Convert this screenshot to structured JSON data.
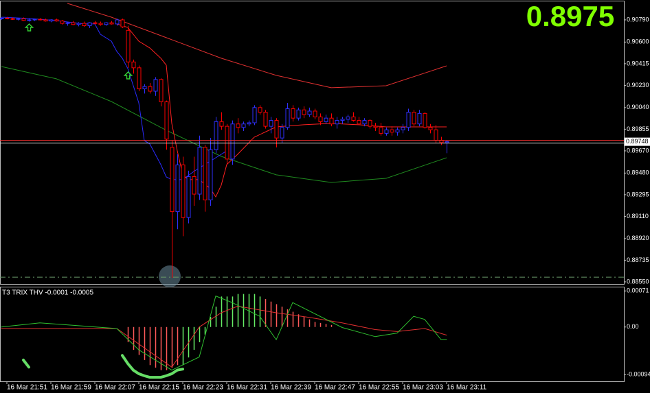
{
  "chart_data": [
    {
      "type": "candlestick",
      "title": "0.8975",
      "title_color": "#7fff00",
      "up_color": "#3030ff",
      "down_color": "#ff0000",
      "x": [
        0,
        1,
        2,
        3,
        4,
        5,
        6,
        7,
        8,
        9,
        10,
        11,
        12,
        13,
        14,
        15,
        16,
        17,
        18,
        19,
        20,
        21,
        22,
        23,
        24,
        25,
        26,
        27,
        28,
        29,
        30,
        31,
        32,
        33,
        34,
        35,
        36,
        37,
        38,
        39,
        40,
        41,
        42,
        43,
        44,
        45,
        46,
        47,
        48,
        49,
        50,
        51,
        52,
        53,
        54,
        55,
        56,
        57,
        58,
        59,
        60,
        61,
        62,
        63,
        64,
        65,
        66,
        67,
        68,
        69,
        70,
        71,
        72,
        73,
        74,
        75,
        76,
        77,
        78,
        79,
        80,
        81
      ],
      "open": [
        0.908,
        0.90805,
        0.908,
        0.90795,
        0.908,
        0.90785,
        0.9079,
        0.90795,
        0.9079,
        0.9078,
        0.9079,
        0.9078,
        0.9076,
        0.90765,
        0.9075,
        0.9076,
        0.9074,
        0.90765,
        0.9076,
        0.9075,
        0.90765,
        0.90755,
        0.9079,
        0.907,
        0.9043,
        0.9038,
        0.902,
        0.9022,
        0.9018,
        0.9028,
        0.9009,
        0.897,
        0.8915,
        0.8955,
        0.891,
        0.8945,
        0.893,
        0.897,
        0.8925,
        0.8968,
        0.8992,
        0.8988,
        0.896,
        0.899,
        0.8987,
        0.899,
        0.8991,
        0.9004,
        0.9,
        0.8988,
        0.8993,
        0.8978,
        0.8987,
        0.9003,
        0.8995,
        0.9002,
        0.8998,
        0.9001,
        0.8996,
        0.8992,
        0.8995,
        0.899,
        0.8993,
        0.8994,
        0.8996,
        0.8993,
        0.899,
        0.8993,
        0.8988,
        0.8987,
        0.8982,
        0.8985,
        0.8983,
        0.8985,
        0.8987,
        0.9,
        0.899,
        0.8999,
        0.8987,
        0.8985,
        0.8976,
        0.8974
      ],
      "high": [
        0.9081,
        0.90815,
        0.9081,
        0.90805,
        0.9081,
        0.908,
        0.908,
        0.90805,
        0.908,
        0.90795,
        0.908,
        0.9079,
        0.90775,
        0.9078,
        0.9077,
        0.90775,
        0.9077,
        0.9078,
        0.90775,
        0.9077,
        0.9078,
        0.908,
        0.908,
        0.9074,
        0.9045,
        0.904,
        0.9024,
        0.9025,
        0.903,
        0.9029,
        0.901,
        0.8976,
        0.8964,
        0.8962,
        0.895,
        0.8962,
        0.898,
        0.8972,
        0.8978,
        0.8996,
        0.9,
        0.899,
        0.8993,
        0.8995,
        0.8992,
        0.8993,
        0.9006,
        0.9006,
        0.9002,
        0.8996,
        0.8995,
        0.899,
        0.9008,
        0.9006,
        0.9004,
        0.9005,
        0.9004,
        0.9003,
        0.8999,
        0.8998,
        0.8999,
        0.8996,
        0.8996,
        0.8998,
        0.9,
        0.8996,
        0.8995,
        0.8994,
        0.8991,
        0.8991,
        0.8987,
        0.8988,
        0.8987,
        0.899,
        0.9003,
        0.9002,
        0.9002,
        0.9,
        0.899,
        0.8989,
        0.8979,
        0.8976
      ],
      "low": [
        0.9079,
        0.90795,
        0.9079,
        0.90785,
        0.9078,
        0.90775,
        0.9078,
        0.90785,
        0.90775,
        0.9077,
        0.90775,
        0.9075,
        0.9074,
        0.90745,
        0.90735,
        0.9073,
        0.9072,
        0.9075,
        0.9074,
        0.9074,
        0.9075,
        0.9074,
        0.9072,
        0.9038,
        0.9033,
        0.9018,
        0.9016,
        0.9016,
        0.9014,
        0.9005,
        0.8968,
        0.88585,
        0.89,
        0.8894,
        0.8905,
        0.892,
        0.8925,
        0.8915,
        0.892,
        0.8965,
        0.8985,
        0.8956,
        0.8955,
        0.8982,
        0.8984,
        0.8988,
        0.8989,
        0.8998,
        0.8986,
        0.8982,
        0.897,
        0.8974,
        0.8985,
        0.8992,
        0.8993,
        0.8995,
        0.8996,
        0.8994,
        0.8989,
        0.899,
        0.8988,
        0.8986,
        0.899,
        0.8991,
        0.8992,
        0.8989,
        0.8988,
        0.8986,
        0.8984,
        0.898,
        0.898,
        0.898,
        0.898,
        0.8982,
        0.8984,
        0.8988,
        0.8988,
        0.8986,
        0.8982,
        0.8974,
        0.8972,
        0.8965
      ],
      "close": [
        0.90805,
        0.908,
        0.90795,
        0.908,
        0.90785,
        0.9079,
        0.90795,
        0.9079,
        0.9078,
        0.9079,
        0.9078,
        0.9076,
        0.90765,
        0.9075,
        0.9076,
        0.9074,
        0.90765,
        0.9076,
        0.9075,
        0.90765,
        0.90755,
        0.9079,
        0.9073,
        0.9043,
        0.9038,
        0.902,
        0.9022,
        0.9018,
        0.9028,
        0.9009,
        0.8977,
        0.8915,
        0.8955,
        0.891,
        0.8945,
        0.893,
        0.897,
        0.8925,
        0.8968,
        0.8992,
        0.8988,
        0.896,
        0.899,
        0.8987,
        0.899,
        0.8991,
        0.9004,
        0.9,
        0.8988,
        0.8993,
        0.8978,
        0.8987,
        0.9003,
        0.8995,
        0.9002,
        0.8998,
        0.9001,
        0.8996,
        0.8992,
        0.8995,
        0.899,
        0.8993,
        0.8994,
        0.8996,
        0.8993,
        0.899,
        0.8993,
        0.8988,
        0.8987,
        0.8982,
        0.8985,
        0.8983,
        0.8985,
        0.8987,
        0.9,
        0.899,
        0.8999,
        0.8987,
        0.8985,
        0.8976,
        0.8974,
        0.89748
      ],
      "lines": [
        {
          "color": "#e03030",
          "x": [
            12,
            20,
            30,
            40,
            50,
            60,
            70,
            81
          ],
          "values": [
            0.90931,
            0.90813,
            0.90638,
            0.90462,
            0.90315,
            0.9021,
            0.90227,
            0.90397
          ]
        },
        {
          "color": "#1f8a1f",
          "x": [
            0,
            10,
            20,
            30,
            40,
            50,
            60,
            70,
            81
          ],
          "values": [
            0.90391,
            0.90286,
            0.90092,
            0.89846,
            0.89623,
            0.89465,
            0.894,
            0.89435,
            0.89611
          ]
        },
        {
          "color": "#2a2aff",
          "x": [
            0,
            5,
            10,
            15,
            17,
            18,
            20,
            21,
            22,
            23,
            25,
            26,
            27,
            29,
            30,
            31,
            33,
            35,
            37,
            39,
            41
          ],
          "values": [
            0.90813,
            0.90802,
            0.90784,
            0.90755,
            0.90755,
            0.90667,
            0.90608,
            0.9052,
            0.90462,
            0.90374,
            0.9008,
            0.89758,
            0.89729,
            0.89553,
            0.89447,
            0.89424,
            0.89424,
            0.89494,
            0.89553,
            0.89611,
            0.8967
          ]
        },
        {
          "color": "#ff2020",
          "x": [
            21,
            23,
            25,
            27,
            29,
            30,
            31,
            32,
            33,
            34,
            36,
            38,
            39,
            40,
            41,
            43,
            46,
            50,
            55,
            60,
            65,
            70,
            75,
            81
          ],
          "values": [
            0.90755,
            0.90725,
            0.90608,
            0.9055,
            0.90462,
            0.90403,
            0.89905,
            0.8967,
            0.89465,
            0.89424,
            0.89424,
            0.89348,
            0.89277,
            0.89377,
            0.89553,
            0.89641,
            0.89787,
            0.89875,
            0.89893,
            0.89905,
            0.89893,
            0.89875,
            0.89875,
            0.89875
          ]
        }
      ],
      "signals": {
        "color": "#33cc33",
        "x": [
          5,
          23
        ],
        "values": [
          0.90725,
          0.90315
        ]
      },
      "level": {
        "color": "#6a9a6a",
        "value": 0.8859
      },
      "last_price": {
        "value": 0.89748,
        "label": "0.89748",
        "color": "#ff3030"
      },
      "xlim": [
        -0.25,
        113.25
      ],
      "ylim": [
        0.88532,
        0.90948
      ],
      "yticks": [
        {
          "value": 0.9079,
          "label": "0.90790"
        },
        {
          "value": 0.906,
          "label": "0.90600"
        },
        {
          "value": 0.90415,
          "label": "0.90415"
        },
        {
          "value": 0.9023,
          "label": "0.90230"
        },
        {
          "value": 0.9004,
          "label": "0.90040"
        },
        {
          "value": 0.89855,
          "label": "0.89855"
        },
        {
          "value": 0.8967,
          "label": "0.89670"
        },
        {
          "value": 0.8948,
          "label": "0.89480"
        },
        {
          "value": 0.89295,
          "label": "0.89295"
        },
        {
          "value": 0.8911,
          "label": "0.89110"
        },
        {
          "value": 0.8892,
          "label": "0.88920"
        },
        {
          "value": 0.88735,
          "label": "0.88735"
        },
        {
          "value": 0.8855,
          "label": "0.88550"
        }
      ]
    },
    {
      "type": "indicator",
      "title": "T3 TRIX THV -0.0001 -0.0005",
      "xlim": [
        -0.25,
        113.25
      ],
      "ylim": [
        -0.00107,
        0.00078
      ],
      "yticks": [
        0.00071,
        {
          "value": 0,
          "label": "0.00"
        },
        -0.00094
      ],
      "xticks": [
        {
          "value": 1,
          "label": "16 Mar 21:51"
        },
        {
          "value": 9,
          "label": "16 Mar 21:59"
        },
        {
          "value": 17,
          "label": "16 Mar 22:07"
        },
        {
          "value": 25,
          "label": "16 Mar 22:15"
        },
        {
          "value": 33,
          "label": "16 Mar 22:23"
        },
        {
          "value": 41,
          "label": "16 Mar 22:31"
        },
        {
          "value": 49,
          "label": "16 Mar 22:39"
        },
        {
          "value": 57,
          "label": "16 Mar 22:47"
        },
        {
          "value": 65,
          "label": "16 Mar 22:55"
        },
        {
          "value": 73,
          "label": "16 Mar 23:03"
        },
        {
          "value": 81,
          "label": "16 Mar 23:11"
        }
      ],
      "histogram": [
        {
          "color": "#ff5a5a",
          "x": [
            23,
            24,
            25,
            26,
            27,
            28,
            29,
            30,
            31,
            32,
            48,
            49,
            50,
            51,
            52,
            53,
            54,
            55,
            56,
            57,
            58,
            59,
            60
          ],
          "values": [
            -0.0003,
            -0.00045,
            -0.00055,
            -0.00065,
            -0.00075,
            -0.0008,
            -0.00085,
            -0.00085,
            -0.0008,
            -0.00075,
            0.00055,
            0.0005,
            0.00045,
            0.0004,
            0.00035,
            0.0003,
            0.00025,
            0.0002,
            0.00015,
            0.0001,
            8e-05,
            6e-05,
            4e-05
          ]
        },
        {
          "color": "#66ee66",
          "x": [
            33,
            34,
            35,
            36,
            37,
            38,
            39,
            40,
            41,
            42,
            43,
            44,
            45,
            46,
            47
          ],
          "values": [
            -0.00075,
            -0.0006,
            -0.00045,
            -0.0003,
            -0.00015,
            0.0002,
            0.0004,
            0.0006,
            0.0006,
            0.0006,
            0.00065,
            0.00065,
            0.00065,
            0.00065,
            0.0006
          ]
        }
      ],
      "series": [
        {
          "color": "#e03030",
          "x": [
            0,
            21,
            31,
            36,
            40,
            43,
            50,
            56,
            62,
            68,
            72,
            77,
            81
          ],
          "values": [
            -3e-05,
            -3e-05,
            -0.00079,
            0,
            0.00028,
            0.00041,
            0.00028,
            0.00019,
            8e-05,
            -5e-05,
            -9e-05,
            -3e-05,
            -0.00016
          ]
        },
        {
          "color": "#2fbf2f",
          "x": [
            0,
            7,
            21,
            25,
            31,
            36,
            39,
            42,
            47,
            50,
            53,
            62,
            68,
            72,
            75,
            77,
            80,
            81
          ],
          "values": [
            0,
            8e-05,
            -3e-05,
            -0.00045,
            -0.00085,
            -0.00059,
            0.00061,
            0.00048,
            0.00021,
            -0.00025,
            0.00048,
            -1e-05,
            -0.00019,
            -0.00012,
            0.00021,
            0.00015,
            -0.00025,
            -0.00025
          ]
        },
        {
          "color": "#66dd66",
          "width": 4,
          "x": [
            4,
            5,
            6,
            22,
            23,
            24,
            25,
            26,
            27,
            28,
            29,
            30,
            31,
            32,
            33
          ],
          "values": [
            -0.00065,
            -0.00079,
            null,
            -0.00056,
            -0.00072,
            -0.00085,
            -0.00092,
            -0.00096,
            -0.00099,
            -0.00099,
            -0.00099,
            -0.00096,
            -0.00092,
            -0.00085,
            -0.00083
          ]
        }
      ]
    }
  ]
}
